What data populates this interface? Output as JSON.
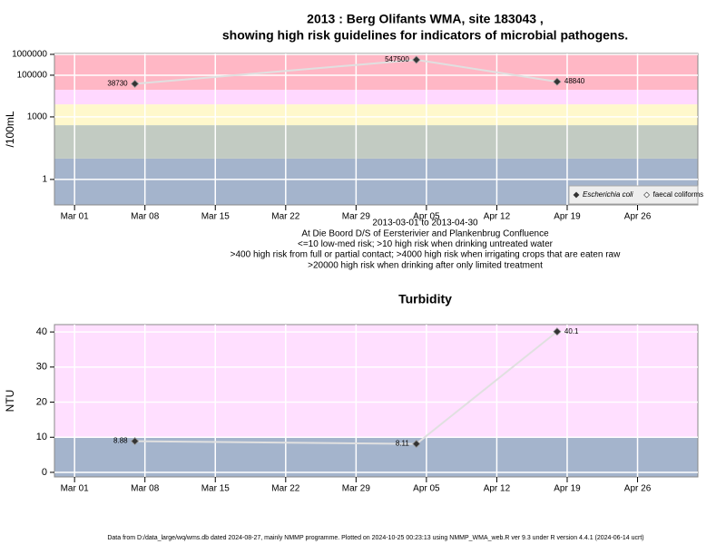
{
  "chart_data": [
    {
      "type": "line",
      "title": "2013 : Berg Olifants WMA, site 183043 ,",
      "subtitle": "showing high risk guidelines for indicators of microbial pathogens.",
      "y_label": "/100mL",
      "log_y": true,
      "x": [
        "2013-03-07",
        "2013-04-04",
        "2013-04-18"
      ],
      "series": [
        {
          "name": "Escherichia coli",
          "color": "#333333",
          "values": [
            38730,
            547500,
            48840
          ],
          "line_color": "#e0e0e0"
        },
        {
          "name": "faecal coliforms",
          "color": "#ffffff",
          "values": [
            null,
            null,
            null
          ]
        }
      ],
      "xlim": [
        "2013-02-27",
        "2013-05-02"
      ],
      "xticks": [
        {
          "value": "2013-03-01",
          "label": "Mar 01"
        },
        {
          "value": "2013-03-08",
          "label": "Mar 08"
        },
        {
          "value": "2013-03-15",
          "label": "Mar 15"
        },
        {
          "value": "2013-03-22",
          "label": "Mar 22"
        },
        {
          "value": "2013-03-29",
          "label": "Mar 29"
        },
        {
          "value": "2013-04-05",
          "label": "Apr 05"
        },
        {
          "value": "2013-04-12",
          "label": "Apr 12"
        },
        {
          "value": "2013-04-19",
          "label": "Apr 19"
        },
        {
          "value": "2013-04-26",
          "label": "Apr 26"
        }
      ],
      "ylim": [
        0.06,
        1100000
      ],
      "yticks": [
        1,
        1000,
        100000,
        1000000
      ],
      "bands": [
        {
          "upto": 10,
          "color": "#a4b4cc"
        },
        {
          "upto": 400,
          "color": "#c2cbc2"
        },
        {
          "upto": 4000,
          "color": "#fff8cc"
        },
        {
          "upto": 20000,
          "color": "#ffd8ff"
        },
        {
          "upto": 1100000,
          "color": "#ffb7c5"
        }
      ],
      "grid": true,
      "legend": "bottom-right",
      "notes": [
        "2013-03-01 to 2013-04-30",
        "At Die Boord D/S of Eersterivier and Plankenbrug Confluence",
        "<=10 low-med risk; >10 high risk when drinking untreated water",
        ">400 high risk from full or partial contact; >4000 high risk when irrigating crops that are eaten raw",
        ">20000 high risk when drinking after only limited treatment"
      ]
    },
    {
      "type": "line",
      "title": "Turbidity",
      "y_label": "NTU",
      "log_y": false,
      "x": [
        "2013-03-07",
        "2013-04-04",
        "2013-04-18"
      ],
      "series": [
        {
          "name": "Turbidity",
          "color": "#333333",
          "values": [
            8.88,
            8.11,
            40.1
          ],
          "line_color": "#e0e0e0"
        }
      ],
      "xlim": [
        "2013-02-27",
        "2013-05-02"
      ],
      "xticks": [
        {
          "value": "2013-03-01",
          "label": "Mar 01"
        },
        {
          "value": "2013-03-08",
          "label": "Mar 08"
        },
        {
          "value": "2013-03-15",
          "label": "Mar 15"
        },
        {
          "value": "2013-03-22",
          "label": "Mar 22"
        },
        {
          "value": "2013-03-29",
          "label": "Mar 29"
        },
        {
          "value": "2013-04-05",
          "label": "Apr 05"
        },
        {
          "value": "2013-04-12",
          "label": "Apr 12"
        },
        {
          "value": "2013-04-19",
          "label": "Apr 19"
        },
        {
          "value": "2013-04-26",
          "label": "Apr 26"
        }
      ],
      "ylim": [
        -1.3,
        42.1
      ],
      "yticks": [
        0,
        10,
        20,
        30,
        40
      ],
      "bands": [
        {
          "upto": 10,
          "color": "#a4b4cc"
        },
        {
          "upto": 42.1,
          "color": "#ffdfff"
        }
      ],
      "grid": true
    }
  ],
  "footer": "Data from D:/data_large/wq/wms.db dated 2024-08-27, mainly NMMP programme. Plotted on 2024-10-25 00:23:13 using NMMP_WMA_web.R ver 9.3 under R version 4.4.1 (2024-06-14 ucrt)"
}
